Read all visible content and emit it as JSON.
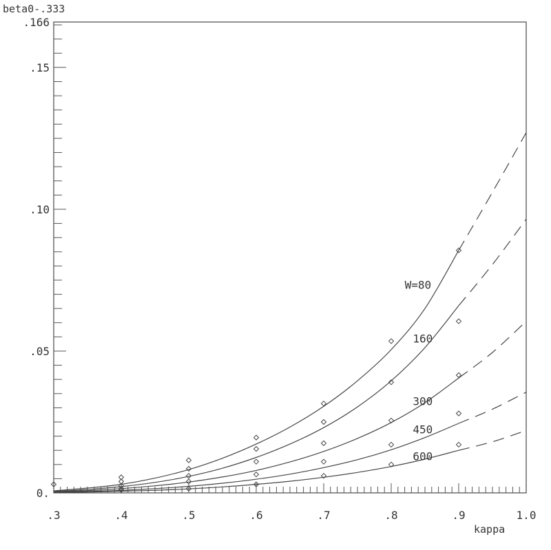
{
  "chart_data": {
    "type": "line",
    "ylabel": "beta0-.333",
    "xlabel": "kappa",
    "xlim": [
      0.3,
      1.0
    ],
    "ylim": [
      0,
      0.166
    ],
    "x_ticks": [
      {
        "value": 0.3,
        "label": ".3"
      },
      {
        "value": 0.4,
        "label": ".4"
      },
      {
        "value": 0.5,
        "label": ".5"
      },
      {
        "value": 0.6,
        "label": ".6"
      },
      {
        "value": 0.7,
        "label": ".7"
      },
      {
        "value": 0.8,
        "label": ".8"
      },
      {
        "value": 0.9,
        "label": ".9"
      },
      {
        "value": 1.0,
        "label": "1.0"
      }
    ],
    "y_ticks": [
      {
        "value": 0.0,
        "label": "0."
      },
      {
        "value": 0.05,
        "label": ".05"
      },
      {
        "value": 0.1,
        "label": ".10"
      },
      {
        "value": 0.15,
        "label": ".15"
      },
      {
        "value": 0.166,
        "label": ".166"
      }
    ],
    "grid": false,
    "series": [
      {
        "name": "W=80",
        "points": [
          [
            0.3,
            0.003
          ],
          [
            0.4,
            0.0055
          ],
          [
            0.5,
            0.0115
          ],
          [
            0.6,
            0.0195
          ],
          [
            0.7,
            0.0315
          ],
          [
            0.8,
            0.0535
          ],
          [
            0.9,
            0.0855
          ]
        ],
        "curve": [
          [
            0.3,
            0.0007
          ],
          [
            0.35,
            0.0017
          ],
          [
            0.4,
            0.003
          ],
          [
            0.45,
            0.0052
          ],
          [
            0.5,
            0.0082
          ],
          [
            0.55,
            0.0122
          ],
          [
            0.6,
            0.0172
          ],
          [
            0.65,
            0.0232
          ],
          [
            0.7,
            0.0305
          ],
          [
            0.75,
            0.0395
          ],
          [
            0.8,
            0.0505
          ],
          [
            0.85,
            0.065
          ],
          [
            0.9,
            0.0855
          ]
        ],
        "extrapolated": [
          [
            0.9,
            0.0855
          ],
          [
            0.95,
            0.106
          ],
          [
            1.0,
            0.127
          ]
        ]
      },
      {
        "name": "160",
        "points": [
          [
            0.4,
            0.004
          ],
          [
            0.5,
            0.0085
          ],
          [
            0.6,
            0.0155
          ],
          [
            0.7,
            0.025
          ],
          [
            0.8,
            0.039
          ],
          [
            0.9,
            0.0605
          ]
        ],
        "curve": [
          [
            0.3,
            0.0005
          ],
          [
            0.35,
            0.0012
          ],
          [
            0.4,
            0.0022
          ],
          [
            0.45,
            0.0037
          ],
          [
            0.5,
            0.0058
          ],
          [
            0.55,
            0.0087
          ],
          [
            0.6,
            0.0125
          ],
          [
            0.65,
            0.0172
          ],
          [
            0.7,
            0.023
          ],
          [
            0.75,
            0.0303
          ],
          [
            0.8,
            0.0395
          ],
          [
            0.85,
            0.0512
          ],
          [
            0.9,
            0.066
          ]
        ],
        "extrapolated": [
          [
            0.9,
            0.066
          ],
          [
            0.95,
            0.0805
          ],
          [
            1.0,
            0.0965
          ]
        ]
      },
      {
        "name": "300",
        "points": [
          [
            0.4,
            0.0025
          ],
          [
            0.5,
            0.006
          ],
          [
            0.6,
            0.011
          ],
          [
            0.7,
            0.0175
          ],
          [
            0.8,
            0.0255
          ],
          [
            0.9,
            0.0415
          ]
        ],
        "curve": [
          [
            0.3,
            0.0003
          ],
          [
            0.35,
            0.0008
          ],
          [
            0.4,
            0.0015
          ],
          [
            0.45,
            0.0025
          ],
          [
            0.5,
            0.0038
          ],
          [
            0.55,
            0.0056
          ],
          [
            0.6,
            0.0079
          ],
          [
            0.65,
            0.0109
          ],
          [
            0.7,
            0.0146
          ],
          [
            0.75,
            0.0192
          ],
          [
            0.8,
            0.0248
          ],
          [
            0.85,
            0.0318
          ],
          [
            0.9,
            0.0405
          ]
        ],
        "extrapolated": [
          [
            0.9,
            0.0405
          ],
          [
            0.95,
            0.0495
          ],
          [
            1.0,
            0.0605
          ]
        ]
      },
      {
        "name": "450",
        "points": [
          [
            0.4,
            0.0015
          ],
          [
            0.5,
            0.004
          ],
          [
            0.6,
            0.0065
          ],
          [
            0.7,
            0.011
          ],
          [
            0.8,
            0.017
          ],
          [
            0.9,
            0.028
          ]
        ],
        "curve": [
          [
            0.3,
            0.0002
          ],
          [
            0.35,
            0.0005
          ],
          [
            0.4,
            0.0009
          ],
          [
            0.45,
            0.0015
          ],
          [
            0.5,
            0.0023
          ],
          [
            0.55,
            0.0034
          ],
          [
            0.6,
            0.0048
          ],
          [
            0.65,
            0.0066
          ],
          [
            0.7,
            0.0089
          ],
          [
            0.75,
            0.0117
          ],
          [
            0.8,
            0.0152
          ],
          [
            0.85,
            0.0195
          ],
          [
            0.9,
            0.0245
          ]
        ],
        "extrapolated": [
          [
            0.9,
            0.0245
          ],
          [
            0.95,
            0.0295
          ],
          [
            1.0,
            0.0355
          ]
        ]
      },
      {
        "name": "600",
        "points": [
          [
            0.4,
            0.001
          ],
          [
            0.5,
            0.0015
          ],
          [
            0.6,
            0.003
          ],
          [
            0.7,
            0.006
          ],
          [
            0.8,
            0.01
          ],
          [
            0.9,
            0.017
          ]
        ],
        "curve": [
          [
            0.3,
            0.0001
          ],
          [
            0.35,
            0.0003
          ],
          [
            0.4,
            0.0006
          ],
          [
            0.45,
            0.0009
          ],
          [
            0.5,
            0.0014
          ],
          [
            0.55,
            0.0021
          ],
          [
            0.6,
            0.003
          ],
          [
            0.65,
            0.0041
          ],
          [
            0.7,
            0.0055
          ],
          [
            0.75,
            0.0072
          ],
          [
            0.8,
            0.0093
          ],
          [
            0.85,
            0.0119
          ],
          [
            0.9,
            0.015
          ]
        ],
        "extrapolated": [
          [
            0.9,
            0.015
          ],
          [
            0.95,
            0.018
          ],
          [
            1.0,
            0.022
          ]
        ]
      }
    ]
  }
}
